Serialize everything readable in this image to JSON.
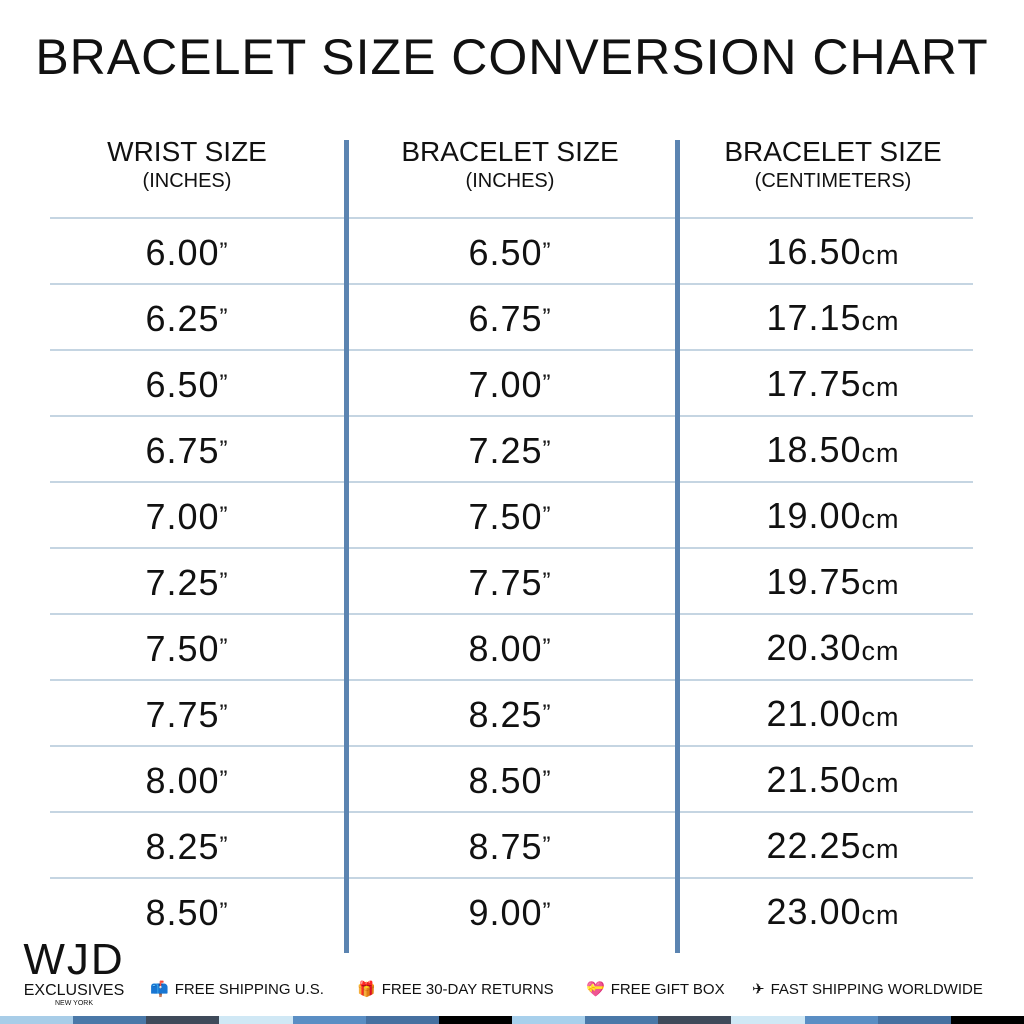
{
  "title": "BRACELET SIZE CONVERSION CHART",
  "columns": [
    {
      "header": "WRIST SIZE",
      "sub": "(INCHES)"
    },
    {
      "header": "BRACELET SIZE",
      "sub": "(INCHES)"
    },
    {
      "header": "BRACELET SIZE",
      "sub": "(CENTIMETERS)"
    }
  ],
  "rows": [
    [
      "6.00",
      "6.50",
      "16.50"
    ],
    [
      "6.25",
      "6.75",
      "17.15"
    ],
    [
      "6.50",
      "7.00",
      "17.75"
    ],
    [
      "6.75",
      "7.25",
      "18.50"
    ],
    [
      "7.00",
      "7.50",
      "19.00"
    ],
    [
      "7.25",
      "7.75",
      "19.75"
    ],
    [
      "7.50",
      "8.00",
      "20.30"
    ],
    [
      "7.75",
      "8.25",
      "21.00"
    ],
    [
      "8.00",
      "8.50",
      "21.50"
    ],
    [
      "8.25",
      "8.75",
      "22.25"
    ],
    [
      "8.50",
      "9.00",
      "23.00"
    ]
  ],
  "inch_mark": "”",
  "cm_unit": "cm",
  "logo": {
    "mark": "WJD",
    "line1": "EXCLUSIVES",
    "line2": "NEW YORK"
  },
  "perks": [
    {
      "icon": "mailbox-icon",
      "glyph": "📫",
      "label": "FREE SHIPPING U.S."
    },
    {
      "icon": "gift-icon",
      "glyph": "🎁",
      "label": "FREE 30-DAY RETURNS"
    },
    {
      "icon": "gift-heart-icon",
      "glyph": "💝",
      "label": "FREE GIFT BOX"
    },
    {
      "icon": "airplane-icon",
      "glyph": "✈",
      "label": "FAST SHIPPING WORLDWIDE"
    }
  ],
  "colors": {
    "divider": "#5b84b1",
    "rule": "#c5d5e2",
    "stripe": [
      "#a8cde8",
      "#4a78a8",
      "#3f4a5a",
      "#d0e8f5",
      "#5a8ec4",
      "#4670a0",
      "#000000",
      "#a8d0ec",
      "#4a78a8",
      "#3f4a5a",
      "#d0e8f5",
      "#5a8ec4",
      "#4670a0",
      "#000000"
    ]
  }
}
